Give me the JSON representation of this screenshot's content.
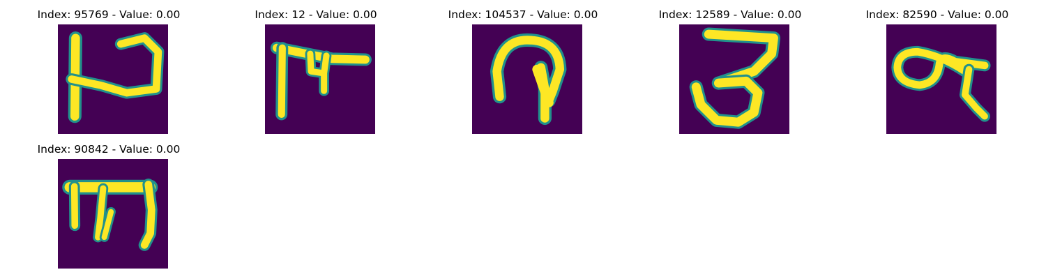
{
  "colors": {
    "background_pixel": "#440154",
    "low": "#46327e",
    "mid_low": "#365c8d",
    "mid": "#21918c",
    "mid_high": "#35b779",
    "high": "#fde725"
  },
  "panels": [
    {
      "title": "Index: 95769 - Value: 0.00",
      "glyph": "glyph-95769"
    },
    {
      "title": "Index: 12 - Value: 0.00",
      "glyph": "glyph-12"
    },
    {
      "title": "Index: 104537 - Value: 0.00",
      "glyph": "glyph-104537"
    },
    {
      "title": "Index: 12589 - Value: 0.00",
      "glyph": "glyph-12589"
    },
    {
      "title": "Index: 82590 - Value: 0.00",
      "glyph": "glyph-82590"
    },
    {
      "title": "Index: 90842 - Value: 0.00",
      "glyph": "glyph-90842"
    }
  ]
}
